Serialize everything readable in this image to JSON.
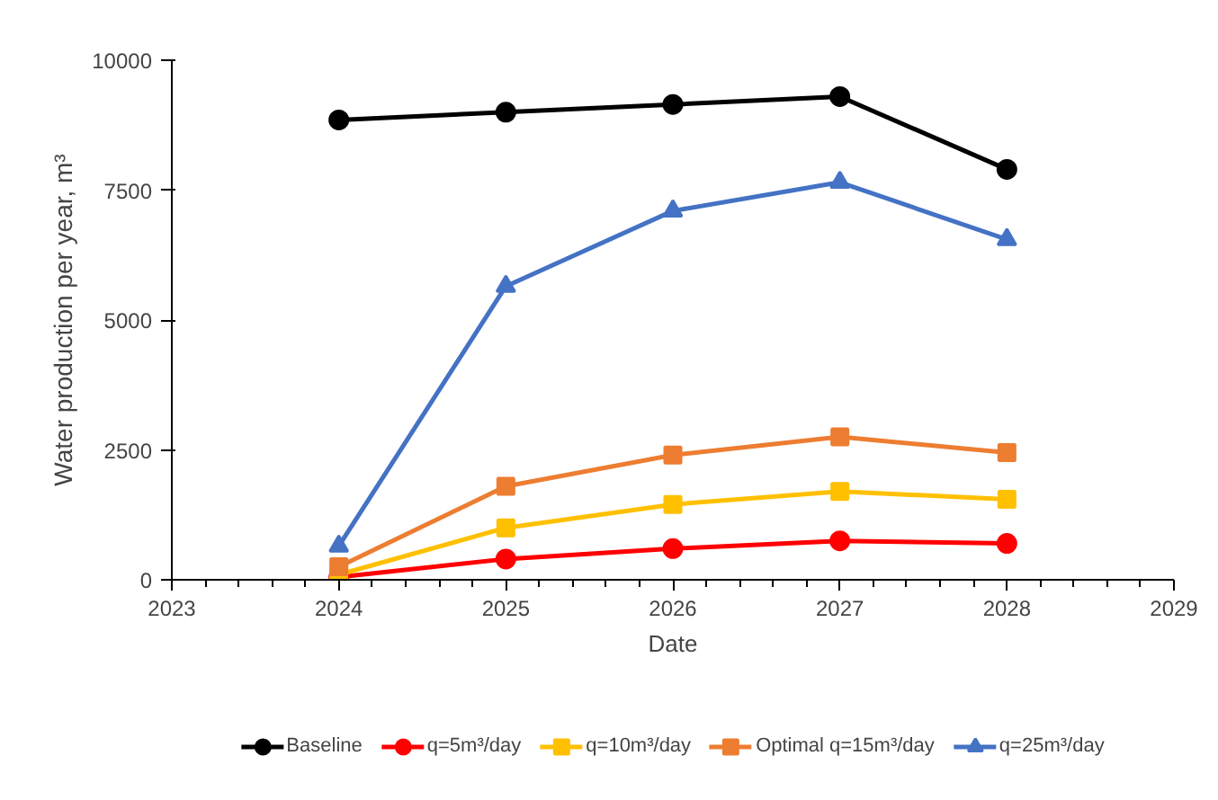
{
  "chart_data": {
    "type": "line",
    "xlabel": "Date",
    "ylabel": "Water production per year, m³",
    "x": [
      2024,
      2025,
      2026,
      2027,
      2028
    ],
    "xlim": [
      2023,
      2029
    ],
    "xticks": [
      2023,
      2024,
      2025,
      2026,
      2027,
      2028,
      2029
    ],
    "ylim": [
      0,
      10000
    ],
    "yticks": [
      0,
      2500,
      5000,
      7500,
      10000
    ],
    "grid": false,
    "legend": "bottom",
    "line_style": "solid",
    "series": [
      {
        "name": "Baseline",
        "color": "#000000",
        "marker": "circle",
        "values": [
          8850,
          9000,
          9150,
          9300,
          7900
        ]
      },
      {
        "name": "q=5m³/day",
        "color": "#ff0000",
        "marker": "circle",
        "values": [
          50,
          400,
          600,
          750,
          700
        ]
      },
      {
        "name": "q=10m³/day",
        "color": "#ffc000",
        "marker": "square",
        "values": [
          100,
          1000,
          1450,
          1700,
          1550
        ]
      },
      {
        "name": "Optimal q=15m³/day",
        "color": "#ed7d31",
        "marker": "square",
        "values": [
          250,
          1800,
          2400,
          2750,
          2450
        ]
      },
      {
        "name": "q=25m³/day",
        "color": "#4472c4",
        "marker": "triangle",
        "values": [
          650,
          5650,
          7100,
          7650,
          6550
        ]
      }
    ]
  }
}
